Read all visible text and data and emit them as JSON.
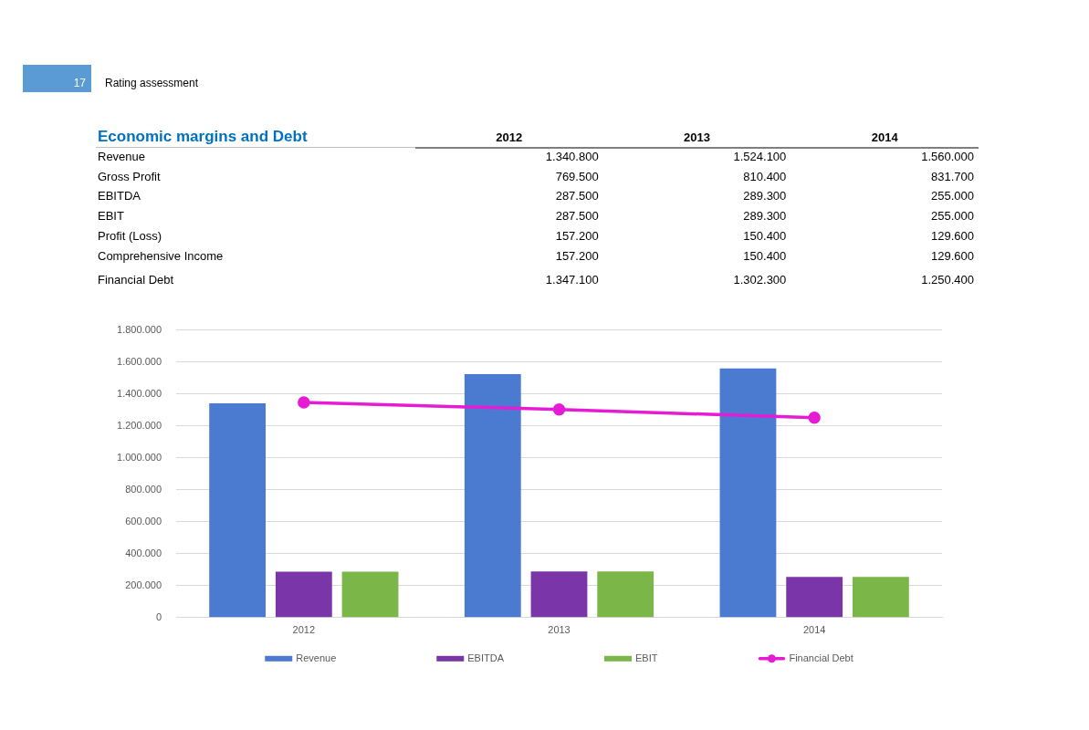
{
  "chart_data": [
    {
      "type": "other",
      "title": "Economic margins and Debt",
      "annotations": [
        "17",
        "Rating assessment"
      ],
      "categories": [
        "2012",
        "2013",
        "2014"
      ],
      "series": [
        {
          "name": "Revenue",
          "values": [
            1340800,
            1524100,
            1560000
          ],
          "value_labels": [
            "1.340.800",
            "1.524.100",
            "1.560.000"
          ]
        },
        {
          "name": "Gross Profit",
          "values": [
            769500,
            810400,
            831700
          ],
          "value_labels": [
            "769.500",
            "810.400",
            "831.700"
          ]
        },
        {
          "name": "EBITDA",
          "values": [
            287500,
            289300,
            255000
          ],
          "value_labels": [
            "287.500",
            "289.300",
            "255.000"
          ]
        },
        {
          "name": "EBIT",
          "values": [
            287500,
            289300,
            255000
          ],
          "value_labels": [
            "287.500",
            "289.300",
            "255.000"
          ]
        },
        {
          "name": "Profit (Loss)",
          "values": [
            157200,
            150400,
            129600
          ],
          "value_labels": [
            "157.200",
            "150.400",
            "129.600"
          ]
        },
        {
          "name": "Comprehensive Income",
          "values": [
            157200,
            150400,
            129600
          ],
          "value_labels": [
            "157.200",
            "150.400",
            "129.600"
          ]
        },
        {
          "name": "Financial Debt",
          "values": [
            1347100,
            1302300,
            1250400
          ],
          "value_labels": [
            "1.347.100",
            "1.302.300",
            "1.250.400"
          ]
        }
      ]
    },
    {
      "type": "bar",
      "categories": [
        "2012",
        "2013",
        "2014"
      ],
      "series": [
        {
          "name": "Revenue",
          "color": "#4a7bd0",
          "values": [
            1340800,
            1524100,
            1560000
          ]
        },
        {
          "name": "EBITDA",
          "color": "#7a36a8",
          "values": [
            287500,
            289300,
            255000
          ]
        },
        {
          "name": "EBIT",
          "color": "#7ab648",
          "values": [
            287500,
            289300,
            255000
          ]
        },
        {
          "name": "Financial Debt",
          "type": "line",
          "color": "#e61bd4",
          "values": [
            1347100,
            1302300,
            1250400
          ]
        }
      ],
      "ylim": [
        0,
        1800000
      ],
      "yticks": [
        0,
        {
          "value": 200000,
          "label": "200.000"
        },
        {
          "value": 400000,
          "label": "400.000"
        },
        {
          "value": 600000,
          "label": "600.000"
        },
        {
          "value": 800000,
          "label": "800.000"
        },
        {
          "value": 1000000,
          "label": "1.000.000"
        },
        {
          "value": 1200000,
          "label": "1.200.000"
        },
        {
          "value": 1400000,
          "label": "1.400.000"
        },
        {
          "value": 1600000,
          "label": "1.600.000"
        },
        {
          "value": 1800000,
          "label": "1.800.000"
        }
      ],
      "grid": "y",
      "legend": "bottom",
      "marker": "circle"
    }
  ]
}
